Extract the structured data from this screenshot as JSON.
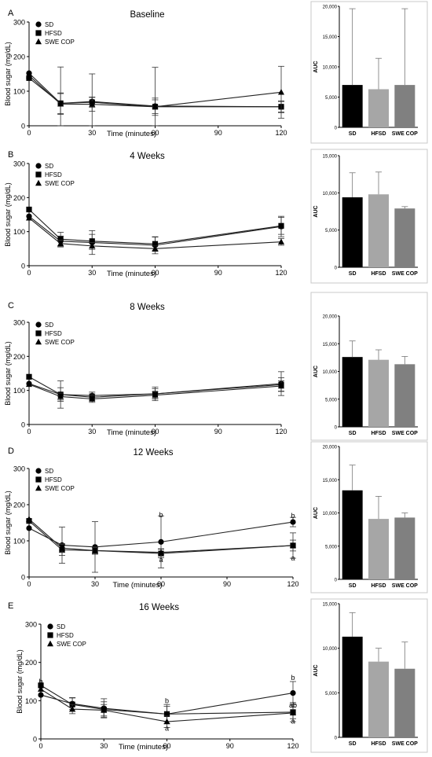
{
  "chart_data": [
    {
      "panel": "A",
      "title": "Baseline",
      "type": "line",
      "xlabel": "Time (minutes)",
      "ylabel": "Blood sugar (mg/dL)",
      "xlim": [
        0,
        120
      ],
      "xticks": [
        "0",
        "30",
        "60",
        "90",
        "120"
      ],
      "ylim": [
        0,
        300
      ],
      "yticks": [
        "0",
        "100",
        "200",
        "300"
      ],
      "legend": [
        "SD",
        "HFSD",
        "SWE COP"
      ],
      "legend_position": "top-left",
      "x": [
        0,
        15,
        30,
        60,
        120
      ],
      "series": [
        {
          "name": "SD",
          "marker": "circle",
          "values": [
            152,
            65,
            70,
            57,
            55
          ],
          "err": [
            0,
            105,
            80,
            112,
            17
          ]
        },
        {
          "name": "HFSD",
          "marker": "square",
          "values": [
            138,
            65,
            68,
            55,
            55
          ],
          "err": [
            0,
            30,
            15,
            25,
            15
          ]
        },
        {
          "name": "SWE COP",
          "marker": "triangle",
          "values": [
            145,
            63,
            62,
            55,
            97
          ],
          "err": [
            0,
            30,
            20,
            20,
            75
          ]
        }
      ],
      "annotations": []
    },
    {
      "panel": "B",
      "title": "4 Weeks",
      "type": "line",
      "xlabel": "Time (minutes)",
      "ylabel": "Blood sugar (mg/dL)",
      "xlim": [
        0,
        120
      ],
      "xticks": [
        "0",
        "30",
        "60",
        "90",
        "120"
      ],
      "ylim": [
        0,
        300
      ],
      "yticks": [
        "0",
        "100",
        "200",
        "300"
      ],
      "legend": [
        "SD",
        "HFSD",
        "SWE COP"
      ],
      "legend_position": "top-left",
      "x": [
        0,
        15,
        30,
        60,
        120
      ],
      "series": [
        {
          "name": "SD",
          "marker": "circle",
          "values": [
            145,
            72,
            68,
            60,
            115
          ],
          "err": [
            0,
            15,
            35,
            25,
            30
          ]
        },
        {
          "name": "HFSD",
          "marker": "square",
          "values": [
            165,
            78,
            72,
            64,
            117
          ],
          "err": [
            0,
            20,
            20,
            20,
            25
          ]
        },
        {
          "name": "SWE COP",
          "marker": "triangle",
          "values": [
            140,
            65,
            58,
            50,
            70
          ],
          "err": [
            0,
            10,
            10,
            8,
            10
          ]
        }
      ],
      "annotations": []
    },
    {
      "panel": "C",
      "title": "8 Weeks",
      "type": "line",
      "xlabel": "Time (minutes)",
      "ylabel": "Blood sugar (mg/dL)",
      "xlim": [
        0,
        120
      ],
      "xticks": [
        "0",
        "30",
        "60",
        "90",
        "120"
      ],
      "ylim": [
        0,
        300
      ],
      "yticks": [
        "0",
        "100",
        "200",
        "300"
      ],
      "legend": [
        "SD",
        "HFSD",
        "SWE COP"
      ],
      "legend_position": "top-left",
      "x": [
        0,
        15,
        30,
        60,
        120
      ],
      "series": [
        {
          "name": "SD",
          "marker": "circle",
          "values": [
            120,
            88,
            85,
            90,
            120
          ],
          "err": [
            0,
            40,
            10,
            20,
            35
          ]
        },
        {
          "name": "HFSD",
          "marker": "square",
          "values": [
            140,
            88,
            80,
            90,
            117
          ],
          "err": [
            0,
            20,
            10,
            15,
            20
          ]
        },
        {
          "name": "SWE COP",
          "marker": "triangle",
          "values": [
            118,
            82,
            75,
            86,
            113
          ],
          "err": [
            0,
            10,
            10,
            10,
            15
          ]
        }
      ],
      "annotations": []
    },
    {
      "panel": "D",
      "title": "12 Weeks",
      "type": "line",
      "xlabel": "Time (minutes)",
      "ylabel": "Blood sugar (mg/dL)",
      "xlim": [
        0,
        120
      ],
      "xticks": [
        "0",
        "30",
        "60",
        "90",
        "120"
      ],
      "ylim": [
        0,
        300
      ],
      "yticks": [
        "0",
        "100",
        "200",
        "300"
      ],
      "legend": [
        "SD",
        "HFSD",
        "SWE COP"
      ],
      "legend_position": "top-left",
      "x": [
        0,
        15,
        30,
        60,
        120
      ],
      "series": [
        {
          "name": "SD",
          "marker": "circle",
          "values": [
            135,
            88,
            83,
            97,
            152
          ],
          "err": [
            0,
            50,
            70,
            72,
            13
          ]
        },
        {
          "name": "HFSD",
          "marker": "square",
          "values": [
            155,
            75,
            73,
            65,
            87
          ],
          "err": [
            0,
            15,
            10,
            12,
            35
          ]
        },
        {
          "name": "SWE COP",
          "marker": "triangle",
          "values": [
            160,
            80,
            73,
            68,
            87
          ],
          "err": [
            0,
            12,
            8,
            10,
            15
          ]
        }
      ],
      "annotations": [
        {
          "text": "b",
          "x": 60,
          "y": 172
        },
        {
          "text": "a",
          "x": 60,
          "y": 48
        },
        {
          "text": "b",
          "x": 120,
          "y": 170
        },
        {
          "text": "a",
          "x": 120,
          "y": 52
        }
      ]
    },
    {
      "panel": "E",
      "title": "16 Weeks",
      "type": "line",
      "xlabel": "Time (minutes)",
      "ylabel": "Blood sugar (mg/dL)",
      "xlim": [
        0,
        120
      ],
      "xticks": [
        "0",
        "30",
        "60",
        "90",
        "120"
      ],
      "ylim": [
        0,
        300
      ],
      "yticks": [
        "0",
        "100",
        "200",
        "300"
      ],
      "legend": [
        "SD",
        "HFSD",
        "SWE COP"
      ],
      "legend_position": "top-left",
      "x": [
        0,
        15,
        30,
        60,
        120
      ],
      "series": [
        {
          "name": "SD",
          "marker": "circle",
          "values": [
            115,
            92,
            80,
            65,
            120
          ],
          "err": [
            0,
            15,
            25,
            25,
            30
          ]
        },
        {
          "name": "HFSD",
          "marker": "square",
          "values": [
            140,
            90,
            77,
            65,
            70
          ],
          "err": [
            0,
            18,
            20,
            20,
            25
          ]
        },
        {
          "name": "SWE COP",
          "marker": "triangle",
          "values": [
            130,
            78,
            75,
            45,
            68
          ],
          "err": [
            0,
            12,
            15,
            15,
            15
          ]
        }
      ],
      "annotations": [
        {
          "text": "b",
          "x": 0,
          "y": 150
        },
        {
          "text": "b",
          "x": 60,
          "y": 100
        },
        {
          "text": "a",
          "x": 60,
          "y": 28
        },
        {
          "text": "b",
          "x": 120,
          "y": 160
        },
        {
          "text": "ab",
          "x": 120,
          "y": 88
        },
        {
          "text": "a",
          "x": 120,
          "y": 46
        }
      ]
    },
    {
      "panel": "A",
      "type": "bar",
      "ylabel": "AUC",
      "ylim": [
        0,
        20000
      ],
      "yticks": [
        "0",
        "5,000",
        "10,000",
        "15,000",
        "20,000"
      ],
      "categories": [
        "SD",
        "HFSD",
        "SWE COP"
      ],
      "values": [
        7000,
        6300,
        7000
      ],
      "err": [
        12600,
        5100,
        12600
      ],
      "colors": [
        "#000000",
        "#a6a6a6",
        "#808080"
      ]
    },
    {
      "panel": "B",
      "type": "bar",
      "ylabel": "AUC",
      "ylim": [
        0,
        15000
      ],
      "yticks": [
        "0",
        "5,000",
        "10,000",
        "15,000"
      ],
      "categories": [
        "SD",
        "HFSD",
        "SWE COP"
      ],
      "values": [
        9400,
        9800,
        7900
      ],
      "err": [
        3300,
        3000,
        250
      ],
      "colors": [
        "#000000",
        "#a6a6a6",
        "#808080"
      ]
    },
    {
      "panel": "C",
      "type": "bar",
      "ylabel": "AUC",
      "ylim": [
        0,
        20000
      ],
      "yticks": [
        "0",
        "5,000",
        "10,000",
        "15,000",
        "20,000"
      ],
      "categories": [
        "SD",
        "HFSD",
        "SWE COP"
      ],
      "values": [
        12600,
        12100,
        11300
      ],
      "err": [
        2900,
        1800,
        1400
      ],
      "colors": [
        "#000000",
        "#a6a6a6",
        "#808080"
      ]
    },
    {
      "panel": "D",
      "type": "bar",
      "ylabel": "AUC",
      "ylim": [
        0,
        20000
      ],
      "yticks": [
        "0",
        "5,000",
        "10,000",
        "15,000",
        "20,000"
      ],
      "categories": [
        "SD",
        "HFSD",
        "SWE COP"
      ],
      "values": [
        13400,
        9100,
        9300
      ],
      "err": [
        3800,
        3400,
        700
      ],
      "colors": [
        "#000000",
        "#a6a6a6",
        "#808080"
      ]
    },
    {
      "panel": "E",
      "type": "bar",
      "ylabel": "AUC",
      "ylim": [
        0,
        15000
      ],
      "yticks": [
        "0",
        "5,000",
        "10,000",
        "15,000"
      ],
      "categories": [
        "SD",
        "HFSD",
        "SWE COP"
      ],
      "values": [
        11300,
        8500,
        7700
      ],
      "err": [
        2700,
        1500,
        3000
      ],
      "colors": [
        "#000000",
        "#a6a6a6",
        "#808080"
      ]
    }
  ]
}
